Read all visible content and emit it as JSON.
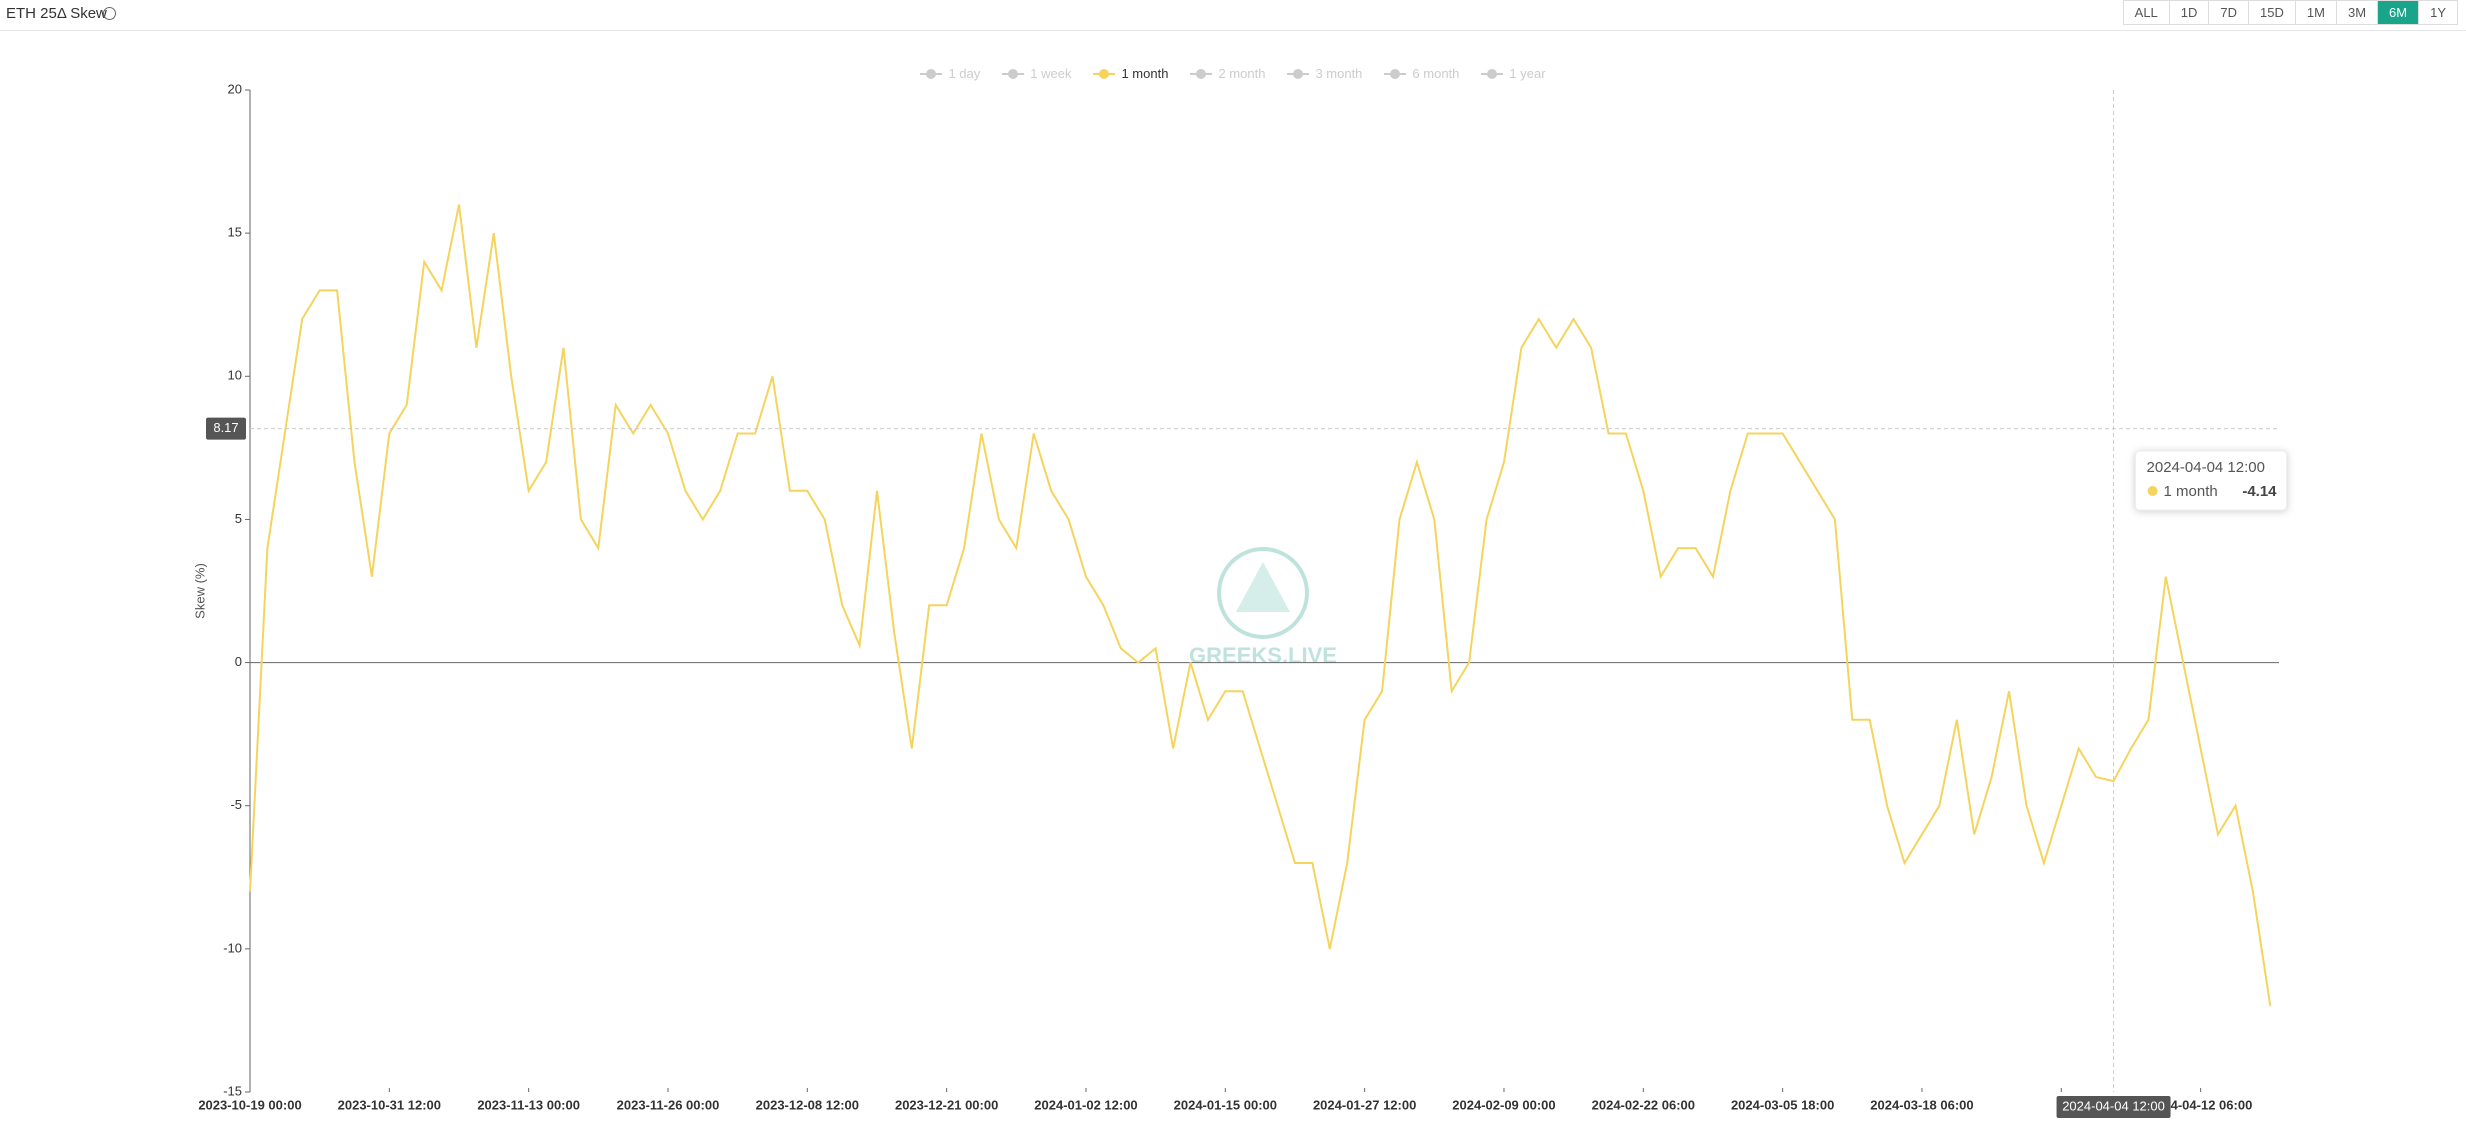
{
  "header": {
    "title": "ETH 25Δ Skew",
    "buttons": [
      "ALL",
      "1D",
      "7D",
      "15D",
      "1M",
      "3M",
      "6M",
      "1Y"
    ]
  },
  "chart_data": {
    "type": "line",
    "watermark": "GREEKS.LIVE",
    "y_label": "Skew (%)",
    "categories": [
      "2023-10-19 00:00",
      null,
      null,
      null,
      null,
      null,
      null,
      null,
      "2023-10-31 12:00",
      null,
      null,
      null,
      null,
      null,
      null,
      null,
      "2023-11-13 00:00",
      null,
      null,
      null,
      null,
      null,
      null,
      null,
      "2023-11-26 00:00",
      null,
      null,
      null,
      null,
      null,
      null,
      null,
      "2023-12-08 12:00",
      null,
      null,
      null,
      null,
      null,
      null,
      null,
      "2023-12-21 00:00",
      null,
      null,
      null,
      null,
      null,
      null,
      null,
      "2024-01-02 12:00",
      null,
      null,
      null,
      null,
      null,
      null,
      null,
      "2024-01-15 00:00",
      null,
      null,
      null,
      null,
      null,
      null,
      null,
      "2024-01-27 12:00",
      null,
      null,
      null,
      null,
      null,
      null,
      null,
      "2024-02-09 00:00",
      null,
      null,
      null,
      null,
      null,
      null,
      null,
      "2024-02-22 06:00",
      null,
      null,
      null,
      null,
      null,
      null,
      null,
      "2024-03-05 18:00",
      null,
      null,
      null,
      null,
      null,
      null,
      null,
      "2024-03-18 06:00",
      null,
      null,
      null,
      null,
      null,
      null,
      null,
      null,
      null,
      null,
      null,
      null,
      null,
      null,
      null,
      "2024-04-12 06:00",
      null,
      null,
      null,
      null
    ],
    "series": [
      {
        "name": "1 month",
        "color": "#f5d45e",
        "values": [
          -8,
          4,
          8,
          12,
          13,
          13,
          7,
          3,
          8,
          9,
          14,
          13,
          16,
          11,
          15,
          10,
          6,
          7,
          11,
          5,
          4,
          9,
          8,
          9,
          8,
          6,
          5,
          6,
          8,
          8,
          10,
          6,
          6,
          5,
          2,
          0.6,
          6,
          1,
          -3,
          2,
          2,
          4,
          8,
          5,
          4,
          8,
          6,
          5,
          3,
          2,
          0.5,
          0,
          0.5,
          -3,
          0,
          -2,
          -1,
          -1,
          -3,
          -5,
          -7,
          -7,
          -10,
          -7,
          -2,
          -1,
          5,
          7,
          5,
          -1,
          0,
          5,
          7,
          11,
          12,
          11,
          12,
          11,
          8,
          8,
          6,
          3,
          4,
          4,
          3,
          6,
          8,
          8,
          8,
          7,
          6,
          5,
          -2,
          -2,
          -5,
          -7,
          -6,
          -5,
          -2,
          -6,
          -4,
          -1,
          -5,
          -7,
          -5,
          -3,
          -4,
          -4.14,
          -3,
          -2,
          3,
          0,
          -3,
          -6,
          -5,
          -8,
          -12
        ]
      }
    ],
    "legend": [
      {
        "name": "1 day"
      },
      {
        "name": "1 week"
      },
      {
        "series": 0
      },
      {
        "name": "2 month"
      },
      {
        "name": "3 month"
      },
      {
        "name": "6 month"
      },
      {
        "name": "1 year"
      }
    ],
    "ylim": [
      -15,
      20
    ],
    "yticks": [
      -15,
      -10,
      -5,
      0,
      5,
      10,
      15,
      20
    ],
    "y_pointer": 8.17,
    "x_pointer": "2024-04-04 12:00"
  }
}
